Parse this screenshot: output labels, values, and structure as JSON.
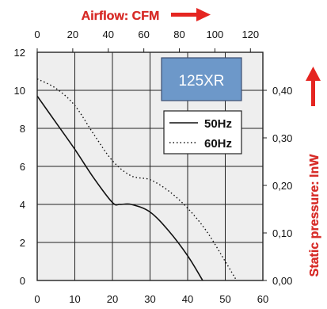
{
  "chart_data": {
    "type": "line",
    "model_label": "125XR",
    "x_bottom": {
      "ticks": [
        0,
        10,
        20,
        30,
        40,
        50,
        60
      ],
      "range": [
        0,
        60
      ]
    },
    "x_top": {
      "label": "Airflow: CFM",
      "ticks": [
        0,
        20,
        40,
        60,
        80,
        100,
        120
      ],
      "range": [
        0,
        127
      ]
    },
    "y_left": {
      "ticks": [
        0,
        2,
        4,
        6,
        8,
        10,
        12
      ],
      "range": [
        0,
        12
      ]
    },
    "y_right": {
      "label": "Static pressure: InW",
      "ticks": [
        "0,00",
        "0,10",
        "0,20",
        "0,30",
        "0,40"
      ],
      "tick_values": [
        0,
        2.5,
        5,
        7.5,
        10
      ]
    },
    "grid": true,
    "legend_position": "top-right",
    "series": [
      {
        "name": "50Hz",
        "style": "solid",
        "points": [
          [
            0,
            9.7
          ],
          [
            5,
            8.3
          ],
          [
            10,
            6.9
          ],
          [
            15,
            5.4
          ],
          [
            20,
            4.1
          ],
          [
            22,
            4.0
          ],
          [
            25,
            4.0
          ],
          [
            30,
            3.6
          ],
          [
            35,
            2.6
          ],
          [
            40,
            1.3
          ],
          [
            44,
            0.0
          ]
        ]
      },
      {
        "name": "60Hz",
        "style": "dotted",
        "points": [
          [
            0,
            10.6
          ],
          [
            5,
            10.1
          ],
          [
            10,
            9.2
          ],
          [
            15,
            7.7
          ],
          [
            20,
            6.3
          ],
          [
            25,
            5.5
          ],
          [
            30,
            5.3
          ],
          [
            35,
            4.7
          ],
          [
            40,
            3.8
          ],
          [
            45,
            2.6
          ],
          [
            50,
            1.0
          ],
          [
            53,
            0.0
          ]
        ]
      }
    ],
    "colors": {
      "title_red": "#d72b27",
      "arrow_red": "#e52521",
      "box_fill": "#6d98c9",
      "box_border": "#3d4f72",
      "plot_bg": "#eeeeee",
      "grid": "#222222"
    }
  }
}
